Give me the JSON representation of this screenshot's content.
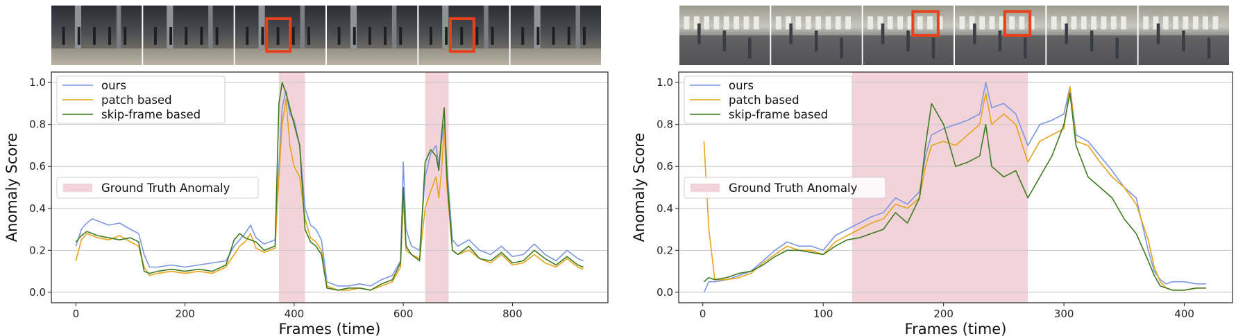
{
  "figure": {
    "panels": [
      {
        "scene": "subway-platform",
        "frames": 6,
        "boxed_frames": [
          2,
          4
        ],
        "legend": {
          "series": [
            "ours",
            "patch based",
            "skip-frame based"
          ],
          "patch_label": "Ground Truth Anomaly"
        }
      },
      {
        "scene": "street-crosswalk",
        "frames": 6,
        "boxed_frames": [
          2,
          3
        ],
        "legend": {
          "series": [
            "ours",
            "patch based",
            "skip-frame based"
          ],
          "patch_label": "Ground Truth Anomaly"
        }
      }
    ]
  },
  "chart_data": [
    {
      "type": "line",
      "xlabel": "Frames (time)",
      "ylabel": "Anomaly Score",
      "xlim": [
        -45,
        975
      ],
      "ylim": [
        -0.05,
        1.05
      ],
      "xticks": [
        0,
        200,
        400,
        600,
        800
      ],
      "yticks": [
        0.0,
        0.2,
        0.4,
        0.6,
        0.8,
        1.0
      ],
      "grid": "horizontal",
      "legend_position": "top-left",
      "colors": {
        "ours": "#7b96e0",
        "patch based": "#e8a317",
        "skip-frame based": "#3d7a1f",
        "anomaly": "#f2d3d9"
      },
      "ground_truth_anomaly": [
        [
          372,
          420
        ],
        [
          640,
          683
        ]
      ],
      "series": [
        {
          "name": "ours",
          "x": [
            0,
            10,
            20,
            30,
            40,
            60,
            80,
            100,
            115,
            125,
            135,
            150,
            175,
            200,
            225,
            250,
            275,
            290,
            300,
            310,
            320,
            330,
            345,
            365,
            372,
            378,
            385,
            392,
            400,
            410,
            420,
            430,
            440,
            450,
            460,
            480,
            500,
            520,
            540,
            560,
            580,
            595,
            600,
            605,
            615,
            630,
            640,
            650,
            660,
            665,
            670,
            675,
            680,
            690,
            700,
            720,
            740,
            760,
            780,
            800,
            820,
            840,
            860,
            880,
            900,
            920,
            930
          ],
          "y": [
            0.22,
            0.3,
            0.33,
            0.35,
            0.34,
            0.32,
            0.33,
            0.3,
            0.28,
            0.18,
            0.12,
            0.12,
            0.13,
            0.12,
            0.13,
            0.14,
            0.15,
            0.22,
            0.25,
            0.28,
            0.32,
            0.26,
            0.23,
            0.25,
            0.6,
            0.88,
            0.96,
            0.85,
            0.82,
            0.7,
            0.4,
            0.32,
            0.3,
            0.25,
            0.05,
            0.03,
            0.03,
            0.04,
            0.03,
            0.06,
            0.08,
            0.15,
            0.62,
            0.3,
            0.22,
            0.2,
            0.55,
            0.66,
            0.7,
            0.6,
            0.72,
            0.8,
            0.6,
            0.25,
            0.22,
            0.25,
            0.2,
            0.18,
            0.22,
            0.17,
            0.18,
            0.23,
            0.18,
            0.15,
            0.2,
            0.16,
            0.15
          ]
        },
        {
          "name": "patch based",
          "x": [
            0,
            10,
            20,
            30,
            40,
            60,
            80,
            100,
            115,
            125,
            135,
            150,
            175,
            200,
            225,
            250,
            275,
            290,
            300,
            310,
            320,
            330,
            345,
            365,
            372,
            378,
            385,
            392,
            400,
            410,
            420,
            430,
            440,
            450,
            460,
            480,
            500,
            520,
            540,
            560,
            580,
            595,
            600,
            605,
            615,
            630,
            640,
            650,
            660,
            665,
            670,
            675,
            680,
            690,
            700,
            720,
            740,
            760,
            780,
            800,
            820,
            840,
            860,
            880,
            900,
            920,
            930
          ],
          "y": [
            0.15,
            0.25,
            0.28,
            0.27,
            0.26,
            0.25,
            0.27,
            0.24,
            0.22,
            0.12,
            0.08,
            0.09,
            0.1,
            0.09,
            0.1,
            0.09,
            0.12,
            0.18,
            0.22,
            0.24,
            0.28,
            0.21,
            0.19,
            0.21,
            0.55,
            0.8,
            0.92,
            0.7,
            0.6,
            0.55,
            0.35,
            0.26,
            0.24,
            0.2,
            0.03,
            0.01,
            0.01,
            0.02,
            0.01,
            0.03,
            0.05,
            0.12,
            0.45,
            0.2,
            0.18,
            0.16,
            0.4,
            0.48,
            0.55,
            0.45,
            0.58,
            0.78,
            0.5,
            0.2,
            0.18,
            0.2,
            0.16,
            0.14,
            0.18,
            0.13,
            0.14,
            0.18,
            0.14,
            0.12,
            0.16,
            0.12,
            0.11
          ]
        },
        {
          "name": "skip-frame based",
          "x": [
            0,
            10,
            20,
            30,
            40,
            60,
            80,
            100,
            115,
            125,
            135,
            150,
            175,
            200,
            225,
            250,
            275,
            290,
            300,
            310,
            320,
            330,
            345,
            365,
            372,
            378,
            385,
            392,
            400,
            410,
            420,
            430,
            440,
            450,
            460,
            480,
            500,
            520,
            540,
            560,
            580,
            595,
            600,
            605,
            615,
            630,
            640,
            650,
            660,
            665,
            670,
            675,
            680,
            690,
            700,
            720,
            740,
            760,
            780,
            800,
            820,
            840,
            860,
            880,
            900,
            920,
            930
          ],
          "y": [
            0.24,
            0.27,
            0.29,
            0.28,
            0.27,
            0.26,
            0.25,
            0.26,
            0.24,
            0.1,
            0.09,
            0.1,
            0.11,
            0.1,
            0.11,
            0.1,
            0.13,
            0.25,
            0.28,
            0.26,
            0.25,
            0.24,
            0.2,
            0.22,
            0.9,
            1.0,
            0.95,
            0.88,
            0.8,
            0.7,
            0.3,
            0.24,
            0.22,
            0.18,
            0.02,
            0.01,
            0.02,
            0.02,
            0.01,
            0.04,
            0.06,
            0.14,
            0.5,
            0.22,
            0.18,
            0.15,
            0.62,
            0.68,
            0.65,
            0.58,
            0.75,
            0.88,
            0.55,
            0.2,
            0.18,
            0.22,
            0.16,
            0.15,
            0.19,
            0.14,
            0.15,
            0.2,
            0.16,
            0.13,
            0.17,
            0.13,
            0.12
          ]
        }
      ]
    },
    {
      "type": "line",
      "xlabel": "Frames (time)",
      "ylabel": "Anomaly Score",
      "xlim": [
        -20,
        440
      ],
      "ylim": [
        -0.05,
        1.05
      ],
      "xticks": [
        0,
        100,
        200,
        300,
        400
      ],
      "yticks": [
        0.0,
        0.2,
        0.4,
        0.6,
        0.8,
        1.0
      ],
      "grid": "horizontal",
      "legend_position": "top-left",
      "colors": {
        "ours": "#7b96e0",
        "patch based": "#e8a317",
        "skip-frame based": "#3d7a1f",
        "anomaly": "#f2d3d9"
      },
      "ground_truth_anomaly": [
        [
          124,
          270
        ]
      ],
      "series": [
        {
          "name": "ours",
          "x": [
            1,
            5,
            10,
            20,
            30,
            40,
            50,
            60,
            70,
            80,
            90,
            100,
            110,
            120,
            130,
            140,
            150,
            160,
            170,
            180,
            185,
            190,
            200,
            210,
            220,
            230,
            235,
            240,
            250,
            260,
            270,
            280,
            290,
            300,
            305,
            310,
            320,
            330,
            340,
            350,
            360,
            370,
            375,
            380,
            385,
            390,
            400,
            410,
            418
          ],
          "y": [
            0.0,
            0.05,
            0.05,
            0.06,
            0.08,
            0.1,
            0.15,
            0.2,
            0.24,
            0.22,
            0.22,
            0.2,
            0.27,
            0.3,
            0.33,
            0.36,
            0.38,
            0.45,
            0.42,
            0.48,
            0.65,
            0.75,
            0.78,
            0.8,
            0.82,
            0.85,
            1.0,
            0.88,
            0.9,
            0.85,
            0.7,
            0.8,
            0.82,
            0.85,
            0.98,
            0.75,
            0.72,
            0.65,
            0.58,
            0.5,
            0.45,
            0.2,
            0.1,
            0.06,
            0.04,
            0.05,
            0.05,
            0.04,
            0.04
          ]
        },
        {
          "name": "patch based",
          "x": [
            1,
            5,
            10,
            20,
            30,
            40,
            50,
            60,
            70,
            80,
            90,
            100,
            110,
            120,
            130,
            140,
            150,
            160,
            170,
            180,
            185,
            190,
            200,
            210,
            220,
            230,
            235,
            240,
            250,
            260,
            270,
            280,
            290,
            300,
            305,
            310,
            320,
            330,
            340,
            350,
            360,
            370,
            375,
            380,
            385,
            390,
            400,
            410,
            418
          ],
          "y": [
            0.72,
            0.3,
            0.06,
            0.06,
            0.07,
            0.09,
            0.14,
            0.18,
            0.22,
            0.2,
            0.2,
            0.18,
            0.24,
            0.27,
            0.3,
            0.33,
            0.35,
            0.42,
            0.4,
            0.45,
            0.6,
            0.7,
            0.72,
            0.7,
            0.75,
            0.8,
            0.95,
            0.8,
            0.85,
            0.8,
            0.62,
            0.72,
            0.75,
            0.78,
            0.98,
            0.72,
            0.7,
            0.62,
            0.55,
            0.5,
            0.42,
            0.25,
            0.12,
            0.05,
            0.02,
            0.01,
            0.01,
            0.02,
            0.02
          ]
        },
        {
          "name": "skip-frame based",
          "x": [
            1,
            5,
            10,
            20,
            30,
            40,
            50,
            60,
            70,
            80,
            90,
            100,
            110,
            120,
            130,
            140,
            150,
            160,
            170,
            180,
            185,
            190,
            200,
            210,
            220,
            230,
            235,
            240,
            250,
            260,
            270,
            280,
            290,
            300,
            305,
            310,
            320,
            330,
            340,
            350,
            360,
            370,
            375,
            380,
            385,
            390,
            400,
            410,
            418
          ],
          "y": [
            0.05,
            0.07,
            0.06,
            0.07,
            0.09,
            0.1,
            0.13,
            0.17,
            0.2,
            0.2,
            0.19,
            0.18,
            0.22,
            0.25,
            0.26,
            0.28,
            0.3,
            0.38,
            0.33,
            0.45,
            0.7,
            0.9,
            0.8,
            0.6,
            0.62,
            0.65,
            0.8,
            0.6,
            0.55,
            0.58,
            0.45,
            0.55,
            0.65,
            0.8,
            0.95,
            0.7,
            0.55,
            0.5,
            0.45,
            0.35,
            0.28,
            0.15,
            0.08,
            0.03,
            0.02,
            0.01,
            0.01,
            0.02,
            0.02
          ]
        }
      ]
    }
  ]
}
